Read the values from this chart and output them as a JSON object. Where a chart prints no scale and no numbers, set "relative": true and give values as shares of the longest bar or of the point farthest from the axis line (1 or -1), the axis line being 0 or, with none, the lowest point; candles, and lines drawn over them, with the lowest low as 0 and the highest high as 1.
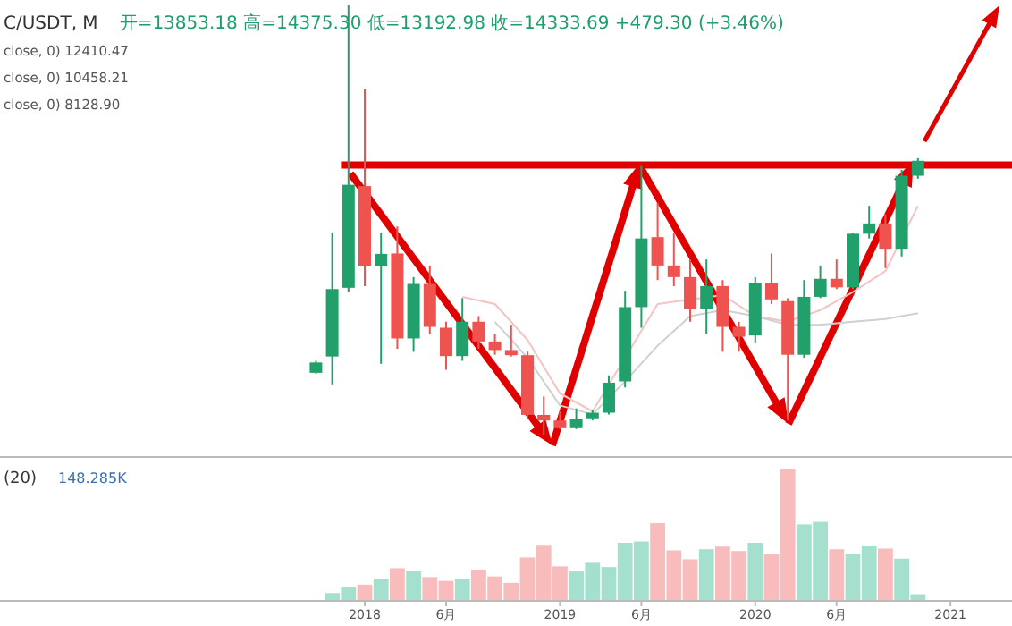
{
  "chart_data": [
    {
      "type": "candlestick",
      "relative": true,
      "tick_labels": false,
      "annotations": [
        "C/USDT, M",
        "开=13853.18  高=14375.30  低=13192.98  收=14333.69  +479.30 (+3.46%)",
        "close, 0)  12410.47",
        "close, 0)  10458.21",
        "close, 0)  8128.90"
      ],
      "categories": [
        null,
        null,
        null,
        null,
        null,
        null,
        null,
        null,
        null,
        null,
        null,
        null,
        null,
        null,
        null,
        null,
        null,
        null,
        null,
        null,
        null,
        null,
        null,
        null,
        null,
        null,
        null,
        null,
        null,
        null,
        null,
        null,
        null,
        null,
        null,
        null,
        null,
        null,
        null,
        null,
        null,
        null
      ],
      "ohlc": [
        [
          0.144,
          0.172,
          0.142,
          0.168
        ],
        [
          0.182,
          0.471,
          0.117,
          0.339
        ],
        [
          0.342,
          1.0,
          0.332,
          0.582
        ],
        [
          0.579,
          0.804,
          0.346,
          0.393
        ],
        [
          0.392,
          0.471,
          0.165,
          0.421
        ],
        [
          0.422,
          0.485,
          0.2,
          0.224
        ],
        [
          0.224,
          0.367,
          0.193,
          0.351
        ],
        [
          0.351,
          0.394,
          0.235,
          0.251
        ],
        [
          0.249,
          0.263,
          0.151,
          0.183
        ],
        [
          0.183,
          0.318,
          0.172,
          0.263
        ],
        [
          0.263,
          0.276,
          0.2,
          0.217
        ],
        [
          0.217,
          0.235,
          0.186,
          0.197
        ],
        [
          0.197,
          0.256,
          0.182,
          0.185
        ],
        [
          0.185,
          0.193,
          0.04,
          0.046
        ],
        [
          0.046,
          0.089,
          0.0,
          0.033
        ],
        [
          0.033,
          0.054,
          0.013,
          0.015
        ],
        [
          0.015,
          0.061,
          0.013,
          0.036
        ],
        [
          0.038,
          0.057,
          0.033,
          0.051
        ],
        [
          0.051,
          0.138,
          0.047,
          0.121
        ],
        [
          0.124,
          0.335,
          0.11,
          0.297
        ],
        [
          0.297,
          0.626,
          0.249,
          0.457
        ],
        [
          0.46,
          0.54,
          0.36,
          0.394
        ],
        [
          0.394,
          0.471,
          0.346,
          0.367
        ],
        [
          0.367,
          0.408,
          0.263,
          0.293
        ],
        [
          0.293,
          0.408,
          0.235,
          0.346
        ],
        [
          0.346,
          0.36,
          0.193,
          0.251
        ],
        [
          0.251,
          0.263,
          0.193,
          0.228
        ],
        [
          0.231,
          0.367,
          0.214,
          0.353
        ],
        [
          0.353,
          0.422,
          0.304,
          0.315
        ],
        [
          0.311,
          0.318,
          0.033,
          0.186
        ],
        [
          0.186,
          0.36,
          0.179,
          0.321
        ],
        [
          0.321,
          0.394,
          0.318,
          0.363
        ],
        [
          0.363,
          0.408,
          0.339,
          0.343
        ],
        [
          0.343,
          0.471,
          0.339,
          0.468
        ],
        [
          0.468,
          0.533,
          0.457,
          0.492
        ],
        [
          0.492,
          0.513,
          0.388,
          0.433
        ],
        [
          0.433,
          0.617,
          0.415,
          0.603
        ],
        [
          0.603,
          0.644,
          0.596,
          0.638
        ],
        null,
        null,
        null,
        null
      ],
      "colors": [
        "#22a06b",
        "#22a06b",
        "#22a06b",
        "#ef5350",
        "#22a06b",
        "#ef5350",
        "#22a06b",
        "#ef5350",
        "#ef5350",
        "#22a06b",
        "#ef5350",
        "#ef5350",
        "#ef5350",
        "#ef5350",
        "#ef5350",
        "#ef5350",
        "#22a06b",
        "#22a06b",
        "#22a06b",
        "#22a06b",
        "#22a06b",
        "#ef5350",
        "#ef5350",
        "#ef5350",
        "#22a06b",
        "#ef5350",
        "#ef5350",
        "#22a06b",
        "#ef5350",
        "#ef5350",
        "#22a06b",
        "#22a06b",
        "#ef5350",
        "#22a06b",
        "#22a06b",
        "#ef5350",
        "#22a06b",
        "#22a06b",
        null,
        null,
        null,
        null
      ],
      "series": [
        {
          "type": "line",
          "color": "#f2c4c4",
          "values": [
            null,
            null,
            null,
            null,
            null,
            null,
            null,
            null,
            null,
            0.321,
            null,
            0.304,
            null,
            0.221,
            null,
            0.096,
            null,
            0.054,
            null,
            0.179,
            null,
            0.304,
            null,
            null,
            null,
            0.325,
            null,
            0.276,
            null,
            0.263,
            null,
            0.29,
            null,
            0.332,
            null,
            0.381,
            null,
            0.533,
            null,
            null,
            null,
            null
          ]
        },
        {
          "type": "line",
          "color": "#d0d0d0",
          "values": [
            null,
            null,
            null,
            null,
            null,
            null,
            null,
            null,
            null,
            null,
            null,
            0.263,
            null,
            0.179,
            null,
            0.068,
            null,
            0.047,
            null,
            0.124,
            null,
            0.207,
            null,
            0.276,
            null,
            0.29,
            null,
            0.276,
            null,
            0.256,
            null,
            0.256,
            null,
            0.263,
            null,
            0.269,
            null,
            0.283,
            null,
            null,
            null,
            null
          ]
        }
      ],
      "ref_lines": [
        {
          "axis": "y",
          "value": 0.628,
          "color": "#e00000"
        }
      ]
    },
    {
      "type": "bar",
      "relative": true,
      "tick_labels": "x",
      "annotations": [
        "(20)",
        "148.285K"
      ],
      "categories": [
        null,
        null,
        null,
        "2018",
        null,
        null,
        null,
        null,
        "6月",
        null,
        null,
        null,
        null,
        null,
        null,
        "2019",
        null,
        null,
        null,
        null,
        "6月",
        null,
        null,
        null,
        null,
        null,
        null,
        "2020",
        null,
        null,
        null,
        null,
        "6月",
        null,
        null,
        null,
        null,
        null,
        null,
        "2021",
        null,
        null
      ],
      "values": [
        null,
        0.053,
        0.102,
        0.117,
        0.16,
        0.243,
        0.223,
        0.175,
        0.146,
        0.16,
        0.233,
        0.18,
        0.131,
        0.325,
        0.422,
        0.257,
        0.218,
        0.291,
        0.252,
        0.437,
        0.447,
        0.587,
        0.379,
        0.311,
        0.388,
        0.408,
        0.374,
        0.437,
        0.35,
        1.0,
        0.578,
        0.597,
        0.388,
        0.35,
        0.417,
        0.393,
        0.316,
        0.044,
        null,
        null,
        null,
        null
      ],
      "colors": [
        null,
        "#a5e0ce",
        "#a5e0ce",
        "#f8bcbc",
        "#a5e0ce",
        "#f8bcbc",
        "#a5e0ce",
        "#f8bcbc",
        "#f8bcbc",
        "#a5e0ce",
        "#f8bcbc",
        "#f8bcbc",
        "#f8bcbc",
        "#f8bcbc",
        "#f8bcbc",
        "#f8bcbc",
        "#a5e0ce",
        "#a5e0ce",
        "#a5e0ce",
        "#a5e0ce",
        "#a5e0ce",
        "#f8bcbc",
        "#f8bcbc",
        "#f8bcbc",
        "#a5e0ce",
        "#f8bcbc",
        "#f8bcbc",
        "#a5e0ce",
        "#f8bcbc",
        "#f8bcbc",
        "#a5e0ce",
        "#a5e0ce",
        "#f8bcbc",
        "#a5e0ce",
        "#a5e0ce",
        "#f8bcbc",
        "#a5e0ce",
        "#a5e0ce",
        null,
        null,
        null,
        null
      ]
    }
  ]
}
